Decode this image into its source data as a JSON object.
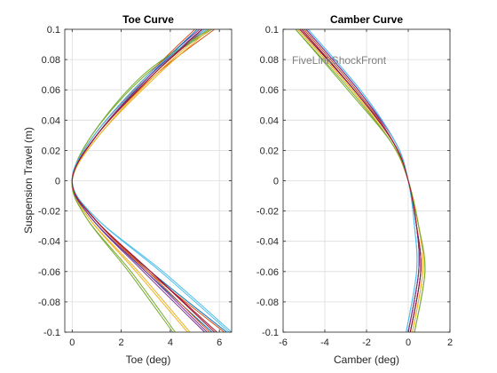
{
  "chart_data": [
    {
      "type": "line",
      "title": "Toe Curve",
      "xlabel": "Toe (deg)",
      "ylabel": "Suspension Travel (m)",
      "xlim": [
        -0.3,
        6.5
      ],
      "ylim": [
        -0.1,
        0.1
      ],
      "xticks": [
        0,
        2,
        4,
        6
      ],
      "yticks": [
        -0.1,
        -0.08,
        -0.06,
        -0.04,
        -0.02,
        0,
        0.02,
        0.04,
        0.06,
        0.08,
        0.1
      ],
      "grid": true,
      "annotation": "",
      "series": [
        {
          "color": "#0072BD",
          "x": [
            6.3,
            3.2,
            0.9,
            0.0,
            1.0,
            3.2,
            5.3
          ],
          "y": [
            -0.1,
            -0.06,
            -0.025,
            0.0,
            0.03,
            0.07,
            0.1
          ]
        },
        {
          "color": "#D95319",
          "x": [
            6.2,
            3.1,
            0.9,
            0.0,
            1.0,
            3.4,
            5.8
          ],
          "y": [
            -0.1,
            -0.06,
            -0.025,
            0.0,
            0.03,
            0.07,
            0.1
          ]
        },
        {
          "color": "#EDB120",
          "x": [
            4.7,
            2.6,
            0.7,
            0.0,
            1.1,
            3.4,
            5.5
          ],
          "y": [
            -0.1,
            -0.06,
            -0.025,
            0.0,
            0.03,
            0.07,
            0.1
          ]
        },
        {
          "color": "#7E2F8E",
          "x": [
            5.4,
            2.9,
            0.8,
            0.0,
            0.9,
            3.1,
            5.2
          ],
          "y": [
            -0.1,
            -0.06,
            -0.025,
            0.0,
            0.03,
            0.07,
            0.1
          ]
        },
        {
          "color": "#77AC30",
          "x": [
            4.1,
            2.3,
            0.6,
            0.0,
            0.8,
            3.0,
            5.7
          ],
          "y": [
            -0.1,
            -0.06,
            -0.025,
            0.0,
            0.03,
            0.07,
            0.1
          ]
        },
        {
          "color": "#4DBEEE",
          "x": [
            6.4,
            3.6,
            1.0,
            0.0,
            0.9,
            3.2,
            5.5
          ],
          "y": [
            -0.1,
            -0.06,
            -0.025,
            0.0,
            0.03,
            0.07,
            0.1
          ]
        },
        {
          "color": "#A2142F",
          "x": [
            5.8,
            3.2,
            0.9,
            0.0,
            1.0,
            3.3,
            5.4
          ],
          "y": [
            -0.1,
            -0.06,
            -0.025,
            0.0,
            0.03,
            0.07,
            0.1
          ]
        },
        {
          "color": "#0072BD",
          "x": [
            5.7,
            3.0,
            0.8,
            0.0,
            1.0,
            3.2,
            5.1
          ],
          "y": [
            -0.1,
            -0.06,
            -0.025,
            0.0,
            0.03,
            0.07,
            0.1
          ]
        },
        {
          "color": "#D95319",
          "x": [
            5.6,
            3.1,
            0.9,
            0.0,
            0.9,
            3.1,
            5.0
          ],
          "y": [
            -0.1,
            -0.06,
            -0.025,
            0.0,
            0.03,
            0.07,
            0.1
          ]
        },
        {
          "color": "#EDB120",
          "x": [
            4.8,
            2.7,
            0.7,
            0.0,
            1.1,
            3.5,
            5.6
          ],
          "y": [
            -0.1,
            -0.06,
            -0.025,
            0.0,
            0.03,
            0.07,
            0.1
          ]
        },
        {
          "color": "#7E2F8E",
          "x": [
            5.5,
            3.0,
            0.8,
            0.0,
            1.0,
            3.2,
            5.3
          ],
          "y": [
            -0.1,
            -0.06,
            -0.025,
            0.0,
            0.03,
            0.07,
            0.1
          ]
        },
        {
          "color": "#77AC30",
          "x": [
            4.2,
            2.4,
            0.6,
            0.0,
            0.8,
            2.9,
            5.6
          ],
          "y": [
            -0.1,
            -0.06,
            -0.025,
            0.0,
            0.03,
            0.07,
            0.1
          ]
        },
        {
          "color": "#4DBEEE",
          "x": [
            6.5,
            3.7,
            1.0,
            0.0,
            0.9,
            3.1,
            5.4
          ],
          "y": [
            -0.1,
            -0.06,
            -0.025,
            0.0,
            0.03,
            0.07,
            0.1
          ]
        },
        {
          "color": "#A2142F",
          "x": [
            5.9,
            3.2,
            0.9,
            0.0,
            1.0,
            3.3,
            5.3
          ],
          "y": [
            -0.1,
            -0.06,
            -0.025,
            0.0,
            0.03,
            0.07,
            0.1
          ]
        }
      ]
    },
    {
      "type": "line",
      "title": "Camber Curve",
      "xlabel": "Camber (deg)",
      "ylabel": "",
      "xlim": [
        -6,
        2
      ],
      "ylim": [
        -0.1,
        0.1
      ],
      "xticks": [
        -6,
        -4,
        -2,
        0,
        2
      ],
      "yticks": [
        -0.1,
        -0.08,
        -0.06,
        -0.04,
        -0.02,
        0,
        0.02,
        0.04,
        0.06,
        0.08,
        0.1
      ],
      "grid": true,
      "annotation": "FiveLinkShockFront",
      "series": [
        {
          "color": "#0072BD",
          "x": [
            -5.0,
            -2.5,
            -0.7,
            0.0,
            0.4,
            0.5,
            0.0
          ],
          "y": [
            0.1,
            0.06,
            0.025,
            0.0,
            -0.03,
            -0.06,
            -0.1
          ]
        },
        {
          "color": "#D95319",
          "x": [
            -5.1,
            -2.6,
            -0.7,
            0.0,
            0.4,
            0.6,
            0.1
          ],
          "y": [
            0.1,
            0.06,
            0.025,
            0.0,
            -0.03,
            -0.06,
            -0.1
          ]
        },
        {
          "color": "#EDB120",
          "x": [
            -5.3,
            -2.7,
            -0.8,
            0.0,
            0.5,
            0.7,
            0.2
          ],
          "y": [
            0.1,
            0.06,
            0.025,
            0.0,
            -0.03,
            -0.06,
            -0.1
          ]
        },
        {
          "color": "#7E2F8E",
          "x": [
            -4.9,
            -2.4,
            -0.7,
            0.0,
            0.4,
            0.5,
            0.0
          ],
          "y": [
            0.1,
            0.06,
            0.025,
            0.0,
            -0.03,
            -0.06,
            -0.1
          ]
        },
        {
          "color": "#77AC30",
          "x": [
            -5.4,
            -2.9,
            -0.8,
            0.0,
            0.5,
            0.8,
            0.3
          ],
          "y": [
            0.1,
            0.06,
            0.025,
            0.0,
            -0.03,
            -0.06,
            -0.1
          ]
        },
        {
          "color": "#4DBEEE",
          "x": [
            -4.8,
            -2.3,
            -0.6,
            0.0,
            0.3,
            0.4,
            -0.1
          ],
          "y": [
            0.1,
            0.06,
            0.025,
            0.0,
            -0.03,
            -0.06,
            -0.1
          ]
        },
        {
          "color": "#A2142F",
          "x": [
            -5.1,
            -2.6,
            -0.7,
            0.0,
            0.4,
            0.6,
            0.1
          ],
          "y": [
            0.1,
            0.06,
            0.025,
            0.0,
            -0.03,
            -0.06,
            -0.1
          ]
        },
        {
          "color": "#0072BD",
          "x": [
            -5.2,
            -2.6,
            -0.7,
            0.0,
            0.4,
            0.6,
            0.1
          ],
          "y": [
            0.1,
            0.06,
            0.025,
            0.0,
            -0.03,
            -0.06,
            -0.1
          ]
        },
        {
          "color": "#D95319",
          "x": [
            -5.0,
            -2.5,
            -0.7,
            0.0,
            0.4,
            0.5,
            0.0
          ],
          "y": [
            0.1,
            0.06,
            0.025,
            0.0,
            -0.03,
            -0.06,
            -0.1
          ]
        },
        {
          "color": "#EDB120",
          "x": [
            -5.3,
            -2.7,
            -0.8,
            0.0,
            0.5,
            0.7,
            0.2
          ],
          "y": [
            0.1,
            0.06,
            0.025,
            0.0,
            -0.03,
            -0.06,
            -0.1
          ]
        },
        {
          "color": "#7E2F8E",
          "x": [
            -4.9,
            -2.4,
            -0.6,
            0.0,
            0.4,
            0.5,
            0.0
          ],
          "y": [
            0.1,
            0.06,
            0.025,
            0.0,
            -0.03,
            -0.06,
            -0.1
          ]
        },
        {
          "color": "#77AC30",
          "x": [
            -5.4,
            -2.8,
            -0.8,
            0.0,
            0.5,
            0.8,
            0.3
          ],
          "y": [
            0.1,
            0.06,
            0.025,
            0.0,
            -0.03,
            -0.06,
            -0.1
          ]
        },
        {
          "color": "#4DBEEE",
          "x": [
            -4.8,
            -2.3,
            -0.6,
            0.0,
            0.3,
            0.4,
            -0.1
          ],
          "y": [
            0.1,
            0.06,
            0.025,
            0.0,
            -0.03,
            -0.06,
            -0.1
          ]
        },
        {
          "color": "#A2142F",
          "x": [
            -5.2,
            -2.6,
            -0.7,
            0.0,
            0.4,
            0.6,
            0.1
          ],
          "y": [
            0.1,
            0.06,
            0.025,
            0.0,
            -0.03,
            -0.06,
            -0.1
          ]
        }
      ]
    }
  ]
}
